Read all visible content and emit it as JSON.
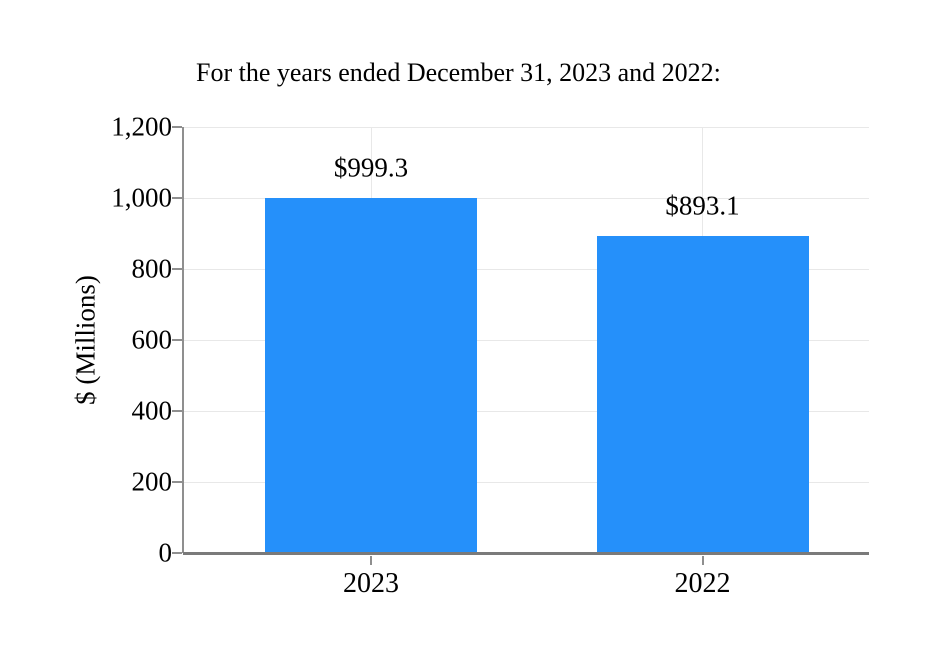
{
  "chart_data": {
    "type": "bar",
    "title": "For the years ended December 31, 2023 and 2022:",
    "xlabel": "",
    "ylabel": "$ (Millions)",
    "categories": [
      "2023",
      "2022"
    ],
    "values": [
      999.3,
      893.1
    ],
    "value_labels": [
      "$999.3",
      "$893.1"
    ],
    "ylim": [
      0,
      1200
    ],
    "ytick_step": 200,
    "ytick_labels": [
      "0",
      "200",
      "400",
      "600",
      "800",
      "1,000",
      "1,200"
    ],
    "grid": true,
    "legend": "none",
    "colors": {
      "bar": "#2590FA",
      "grid": "#E8E8E8",
      "spine": "#8F8F8F",
      "axis": "#7A7A7A",
      "text": "#000000"
    }
  }
}
